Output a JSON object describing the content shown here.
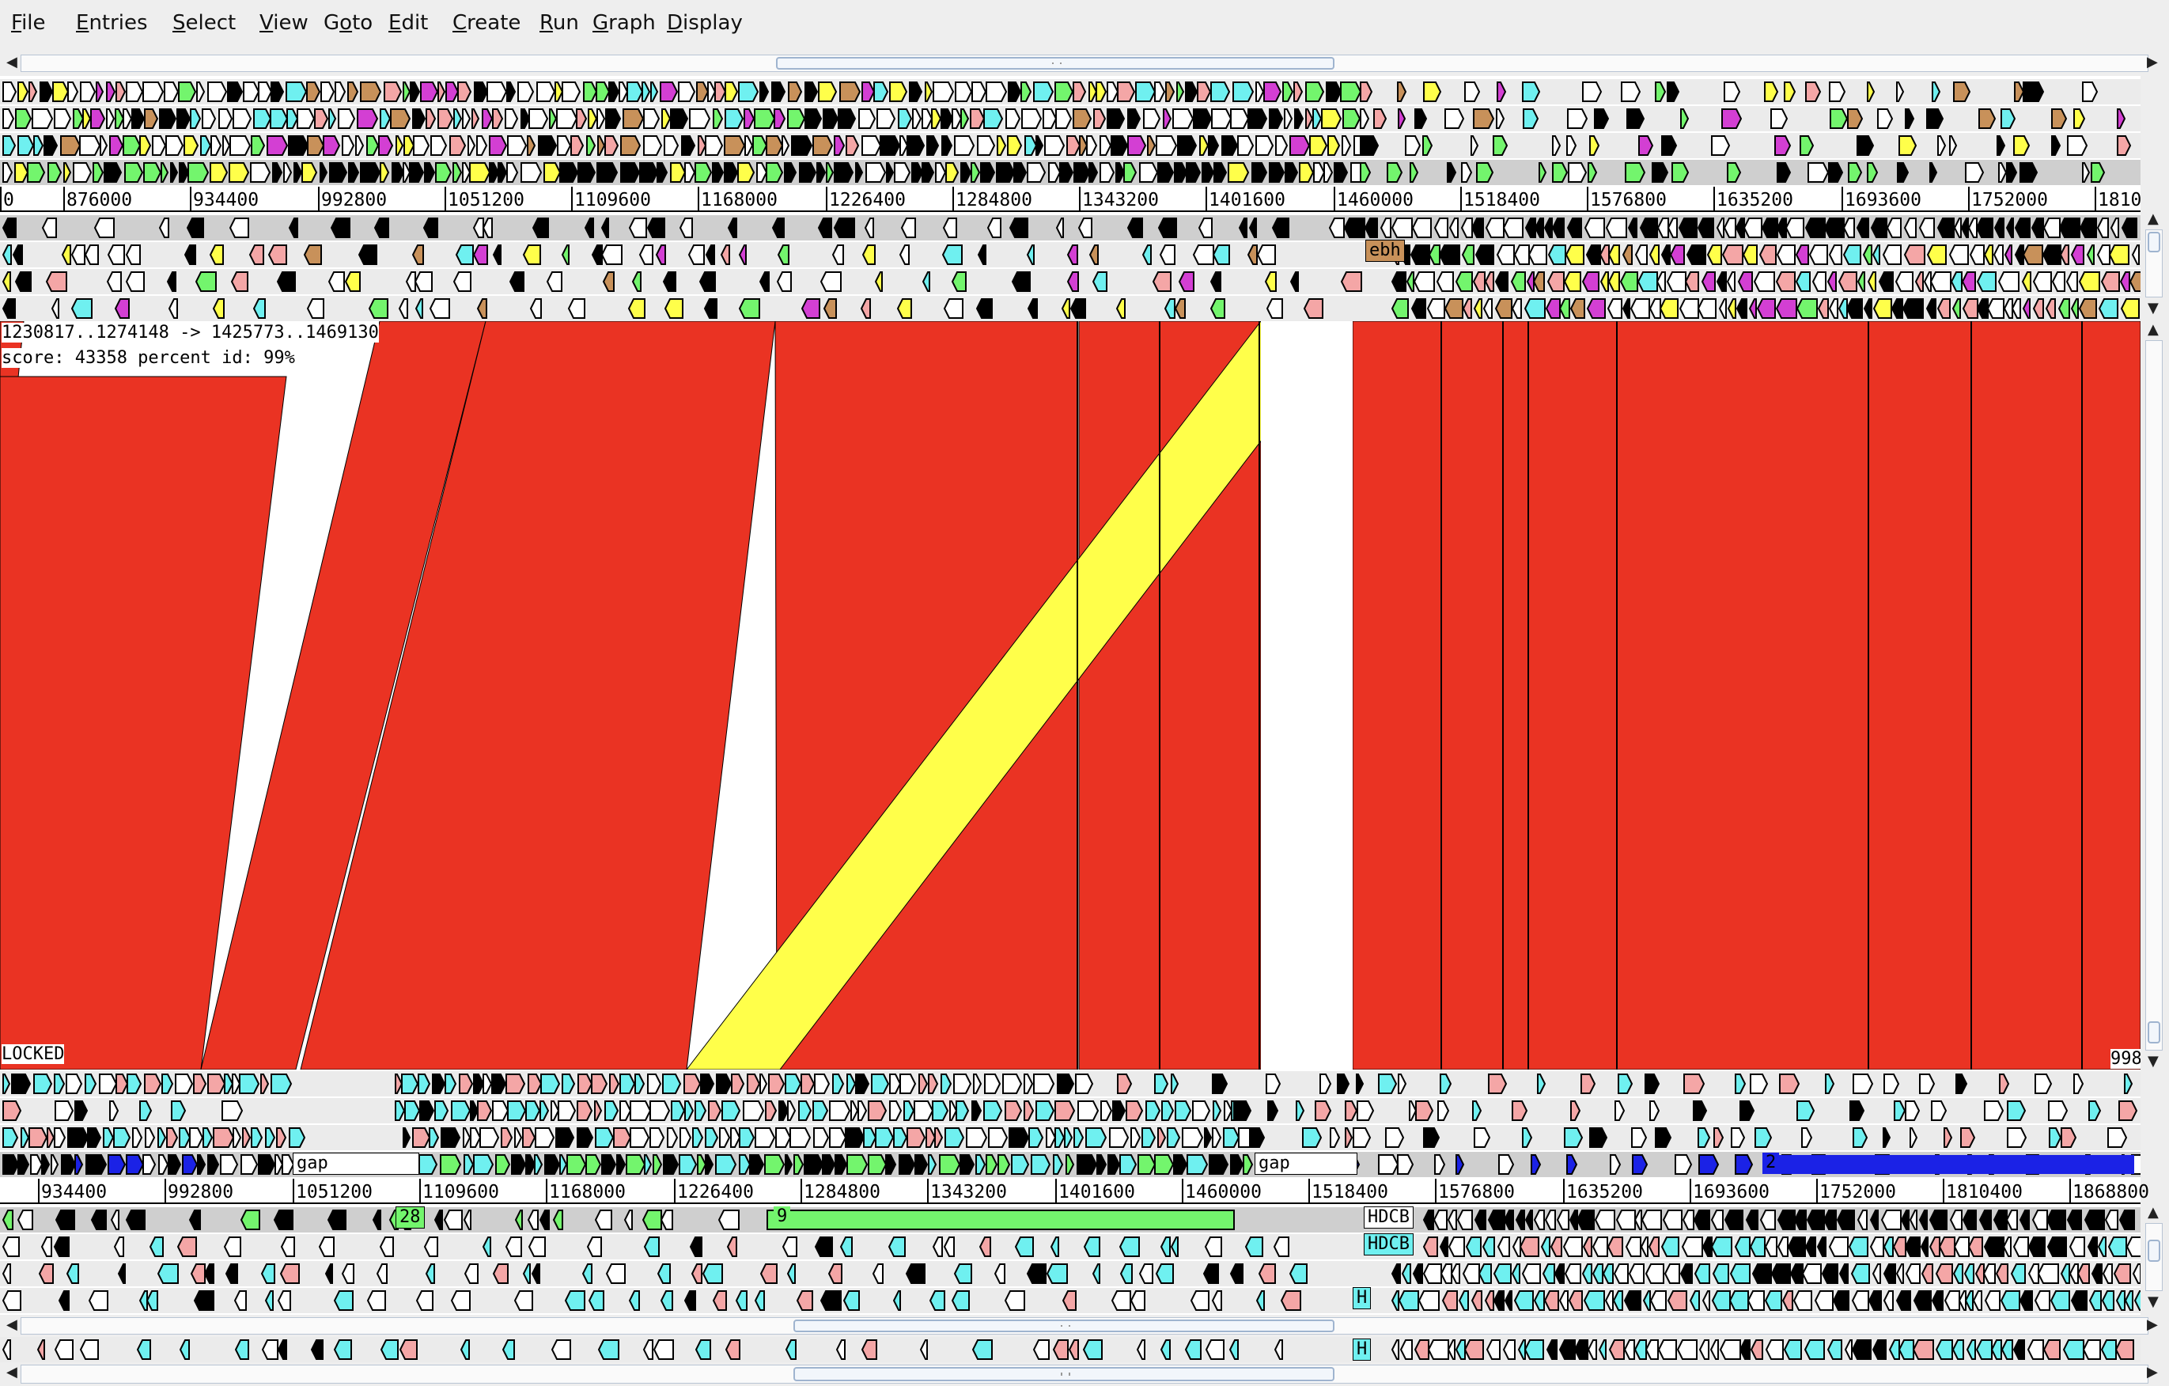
{
  "menu": [
    "File",
    "Entries",
    "Select",
    "View",
    "Goto",
    "Edit",
    "Create",
    "Run",
    "Graph",
    "Display"
  ],
  "menu_mnemonics": [
    "F",
    "E",
    "S",
    "V",
    "o",
    "E",
    "C",
    "R",
    "G",
    "D"
  ],
  "top_ruler": [
    "0",
    "876000",
    "934400",
    "992800",
    "1051200",
    "1109600",
    "1168000",
    "1226400",
    "1284800",
    "1343200",
    "1401600",
    "1460000",
    "1518400",
    "1576800",
    "1635200",
    "1693600",
    "1752000",
    "1810"
  ],
  "bottom_ruler": [
    "934400",
    "992800",
    "1051200",
    "1109600",
    "1168000",
    "1226400",
    "1284800",
    "1343200",
    "1401600",
    "1460000",
    "1518400",
    "1576800",
    "1635200",
    "1693600",
    "1752000",
    "1810400",
    "1868800"
  ],
  "comparison": {
    "match_coords": "1230817..1274148 -> 1425773..1469130",
    "match_score": "score: 43358  percent id: 99%",
    "locked_label": "LOCKED",
    "right_edge_label": "998"
  },
  "feature_labels": {
    "top": [
      "ebh"
    ],
    "bottom": [
      "gap",
      "gap",
      "HDCB",
      "HDCB",
      "H",
      "H",
      "28",
      "9",
      "2"
    ]
  },
  "colors": {
    "match_red": "#ea3323",
    "match_inverted_yellow": "#ffff4a",
    "feature_cyan": "#6ff0f0",
    "feature_green": "#73f56d",
    "feature_blue": "#1b22e6",
    "feature_pink": "#f4a6a6",
    "feature_brown": "#c8915a"
  },
  "icons": [
    "left-arrow-icon",
    "right-arrow-icon",
    "up-arrow-icon",
    "down-arrow-icon",
    "scroll-grip-icon",
    "forward-feature-icon",
    "reverse-feature-icon"
  ]
}
